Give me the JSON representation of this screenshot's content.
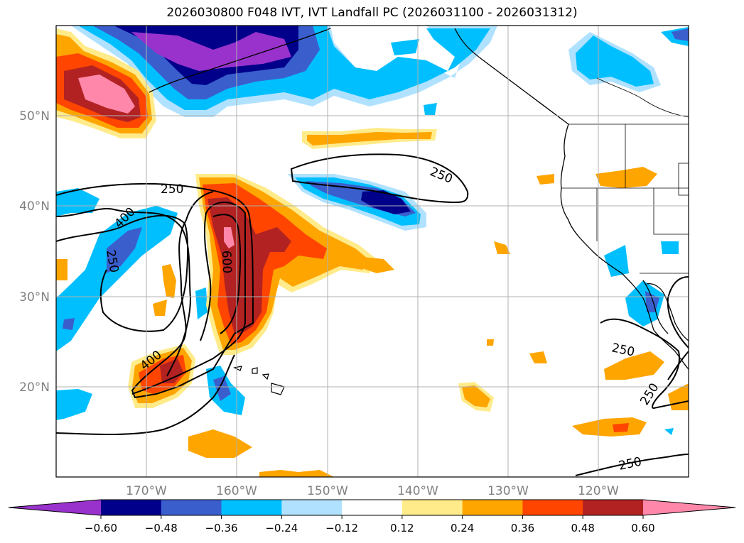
{
  "title": "2026030800 F048 IVT, IVT Landfall PC (2026031100 - 2026031312)",
  "map": {
    "lat_ticks": [
      "50°N",
      "40°N",
      "30°N",
      "20°N"
    ],
    "lon_ticks": [
      "170°W",
      "160°W",
      "150°W",
      "140°W",
      "130°W",
      "120°W"
    ],
    "gridlines": true
  },
  "ivt_contours": {
    "label_texts": [
      "250",
      "250",
      "400",
      "400",
      "250",
      "600",
      "250",
      "250",
      "250"
    ]
  },
  "colorbar": {
    "tick_labels": [
      "−0.60",
      "−0.48",
      "−0.36",
      "−0.24",
      "−0.12",
      "0.12",
      "0.24",
      "0.36",
      "0.48",
      "0.60"
    ],
    "colors": [
      "#9932cc",
      "#00008b",
      "#3a5fcd",
      "#00bfff",
      "#b0e2ff",
      "#ffffff",
      "#ffeb8a",
      "#ffa500",
      "#ff4500",
      "#b22222",
      "#ff88aa"
    ],
    "extend": "both"
  },
  "colors": {
    "coast": "#000000",
    "grid": "#b0b0b0",
    "contour": "#000000"
  }
}
